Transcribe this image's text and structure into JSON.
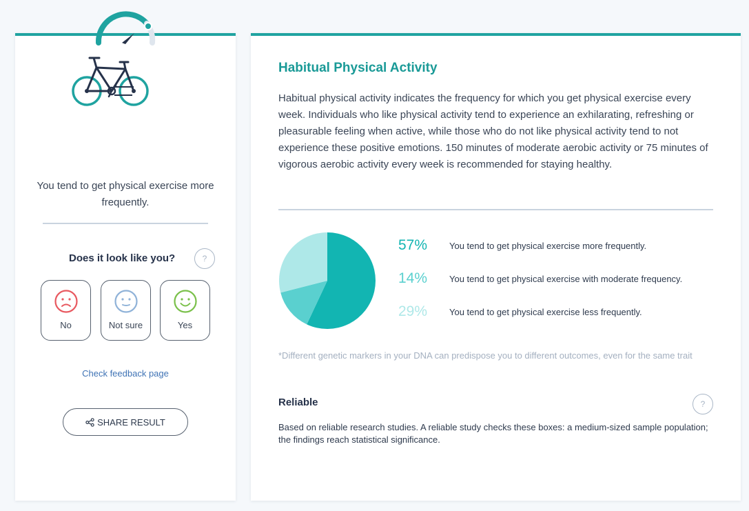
{
  "colors": {
    "accent": "#1fa3a0",
    "title": "#1a9a97",
    "pie_high": "#12b5b2",
    "pie_moderate": "#5ad0cf",
    "pie_low": "#aee8e8",
    "sad": "#e8585f",
    "neutral": "#8fb2d8",
    "happy": "#7ac04a"
  },
  "left": {
    "gauge_icon": "gauge-icon",
    "trait_icon": "bicycle-icon",
    "summary": "You tend to get physical exercise more frequently.",
    "question": "Does it look like you?",
    "help_label": "?",
    "feedback": [
      {
        "label": "No",
        "icon": "sad-face-icon"
      },
      {
        "label": "Not sure",
        "icon": "neutral-face-icon"
      },
      {
        "label": "Yes",
        "icon": "happy-face-icon"
      }
    ],
    "feedback_link": "Check feedback page",
    "share_label": "SHARE RESULT",
    "share_icon": "share-icon"
  },
  "right": {
    "title": "Habitual Physical Activity",
    "description": "Habitual physical activity indicates the frequency for which you get physical exercise every week. Individuals who like physical activity tend to experience an exhilarating, refreshing or pleasurable feeling when active, while those who do not like physical activity tend to not experience these positive emotions. 150 minutes of moderate aerobic activity or 75 minutes of vigorous aerobic activity every week is recommended for staying healthy.",
    "chart_data": {
      "type": "pie",
      "slices": [
        {
          "percent_label": "57%",
          "value": 57,
          "label": "You tend to get physical exercise more frequently.",
          "color": "#12b5b2"
        },
        {
          "percent_label": "14%",
          "value": 14,
          "label": "You tend to get physical exercise with moderate frequency.",
          "color": "#5ad0cf"
        },
        {
          "percent_label": "29%",
          "value": 29,
          "label": "You tend to get physical exercise less frequently.",
          "color": "#aee8e8"
        }
      ]
    },
    "disclaimer": "*Different genetic markers in your DNA can predispose you to different outcomes, even for the same trait",
    "reliability": {
      "title": "Reliable",
      "help_label": "?",
      "description": "Based on reliable research studies. A reliable study checks these boxes: a medium-sized sample population; the findings reach statistical significance."
    }
  }
}
